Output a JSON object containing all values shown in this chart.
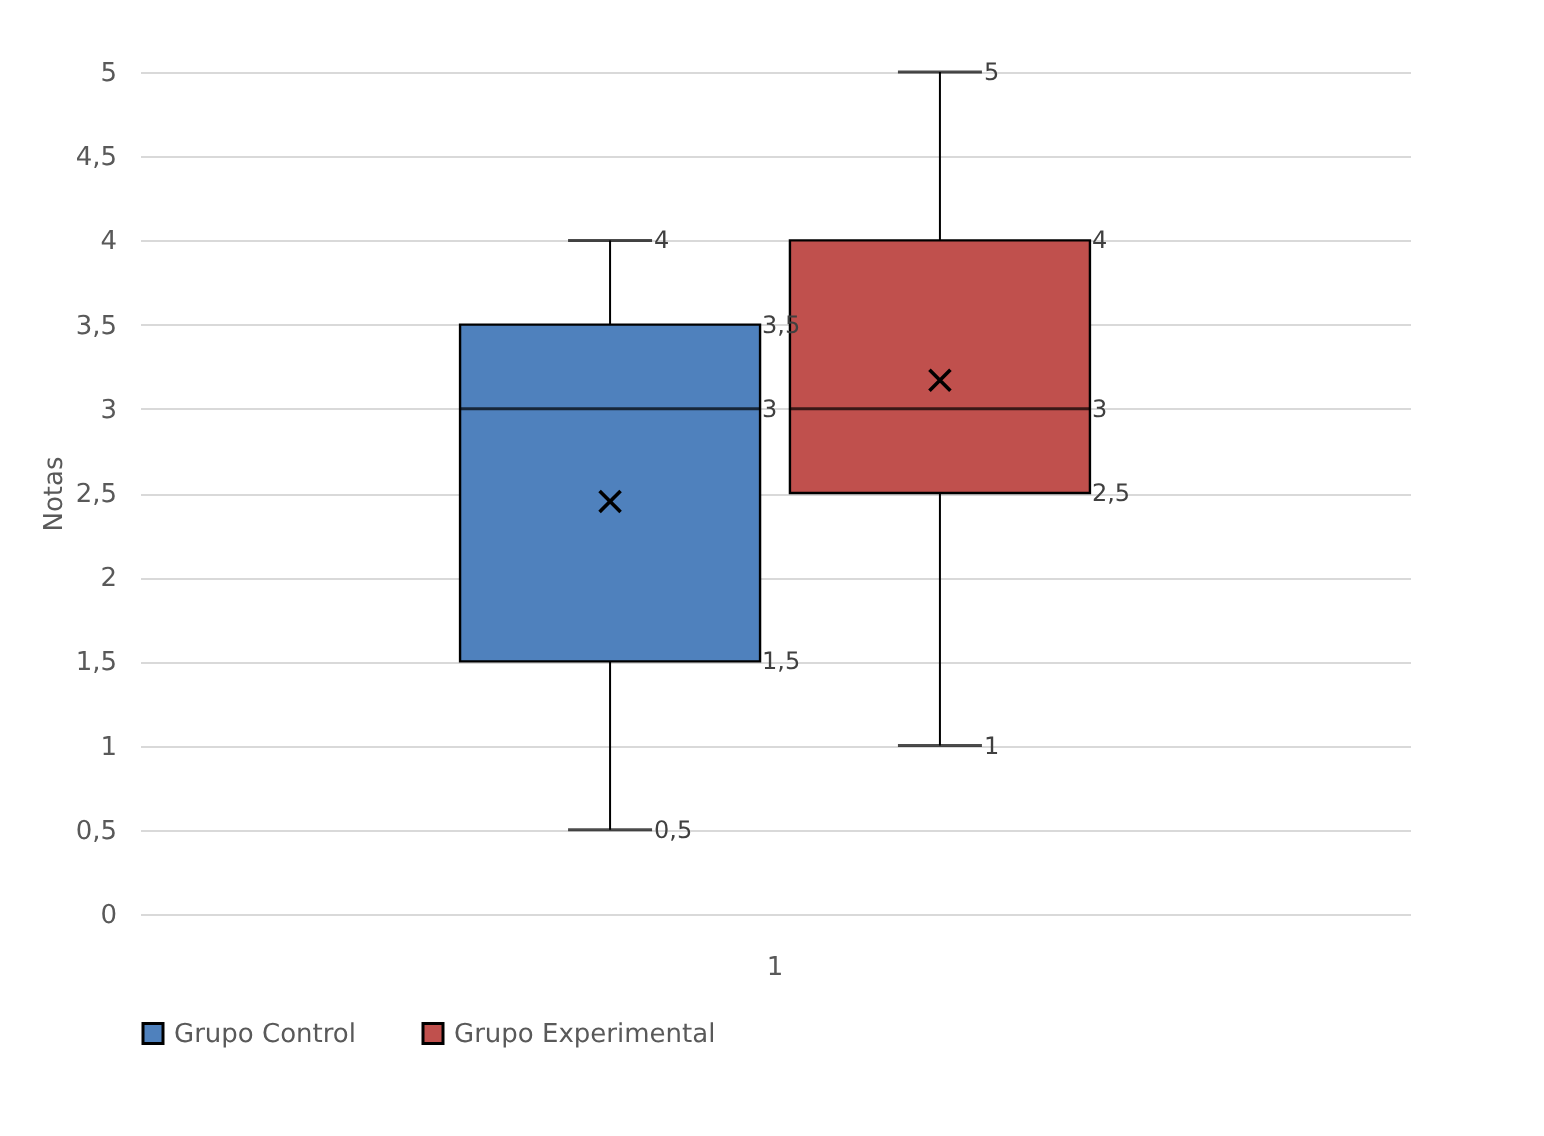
{
  "chart_data": {
    "type": "box",
    "ylabel": "Notas",
    "categories": [
      "1"
    ],
    "series": [
      {
        "name": "Grupo Control",
        "color": "#4f81bd",
        "boxes": [
          {
            "low": 0.5,
            "q1": 1.5,
            "median": 3,
            "q3": 3.5,
            "high": 4,
            "mean": 2.45
          }
        ]
      },
      {
        "name": "Grupo Experimental",
        "color": "#c0504d",
        "boxes": [
          {
            "low": 1,
            "q1": 2.5,
            "median": 3,
            "q3": 4,
            "high": 5,
            "mean": 3.17
          }
        ]
      }
    ],
    "ylim": [
      0,
      5
    ],
    "yticks": [
      0,
      {
        "value": 0.5,
        "label": "0,5"
      },
      1,
      {
        "value": 1.5,
        "label": "1,5"
      },
      2,
      {
        "value": 2.5,
        "label": "2,5"
      },
      3,
      {
        "value": 3.5,
        "label": "3,5"
      },
      4,
      {
        "value": 4.5,
        "label": "4,5"
      },
      5
    ],
    "annotations": [
      "0,5",
      "1,5",
      "3",
      "3,5",
      "4",
      "1",
      "2,5",
      "3",
      "4",
      "5"
    ],
    "grid": "y",
    "legend": "bottom",
    "marker": "cross",
    "data_labels": true
  }
}
